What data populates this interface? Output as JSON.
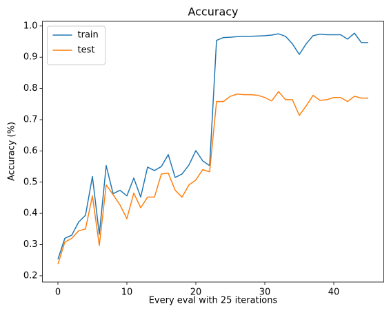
{
  "chart_data": {
    "type": "line",
    "title": "Accuracy",
    "x_label": "Every eval with 25 iterations",
    "y_label": "Accuracy (%)",
    "x": [
      0,
      1,
      2,
      3,
      4,
      5,
      6,
      7,
      8,
      9,
      10,
      11,
      12,
      13,
      14,
      15,
      16,
      17,
      18,
      19,
      20,
      21,
      22,
      23,
      24,
      25,
      26,
      27,
      28,
      29,
      30,
      31,
      32,
      33,
      34,
      35,
      36,
      37,
      38,
      39,
      40,
      41,
      42,
      43,
      44,
      45
    ],
    "series": [
      {
        "name": "train",
        "color": "#1f77b4",
        "values": [
          0.253,
          0.32,
          0.33,
          0.372,
          0.394,
          0.518,
          0.333,
          0.553,
          0.463,
          0.474,
          0.456,
          0.513,
          0.452,
          0.548,
          0.537,
          0.55,
          0.588,
          0.515,
          0.526,
          0.555,
          0.601,
          0.568,
          0.553,
          0.954,
          0.963,
          0.964,
          0.966,
          0.967,
          0.967,
          0.968,
          0.969,
          0.971,
          0.975,
          0.967,
          0.943,
          0.909,
          0.943,
          0.969,
          0.974,
          0.972,
          0.972,
          0.972,
          0.958,
          0.977,
          0.947,
          0.947
        ]
      },
      {
        "name": "test",
        "color": "#ff7f0e",
        "values": [
          0.237,
          0.308,
          0.32,
          0.344,
          0.35,
          0.456,
          0.297,
          0.491,
          0.46,
          0.427,
          0.383,
          0.465,
          0.418,
          0.452,
          0.452,
          0.526,
          0.529,
          0.474,
          0.452,
          0.491,
          0.507,
          0.54,
          0.533,
          0.758,
          0.758,
          0.775,
          0.782,
          0.78,
          0.78,
          0.778,
          0.771,
          0.76,
          0.79,
          0.764,
          0.764,
          0.714,
          0.744,
          0.778,
          0.762,
          0.764,
          0.771,
          0.771,
          0.758,
          0.775,
          0.769,
          0.769
        ]
      }
    ],
    "xlim": [
      -2.25,
      47.25
    ],
    "ylim": [
      0.18,
      1.015
    ],
    "xticks": [
      0,
      10,
      20,
      30,
      40
    ],
    "yticks": [
      0.2,
      0.3,
      0.4,
      0.5,
      0.6,
      0.7,
      0.8,
      0.9,
      {
        "value": 1,
        "label": "1.0"
      }
    ],
    "legend": "upper left"
  }
}
